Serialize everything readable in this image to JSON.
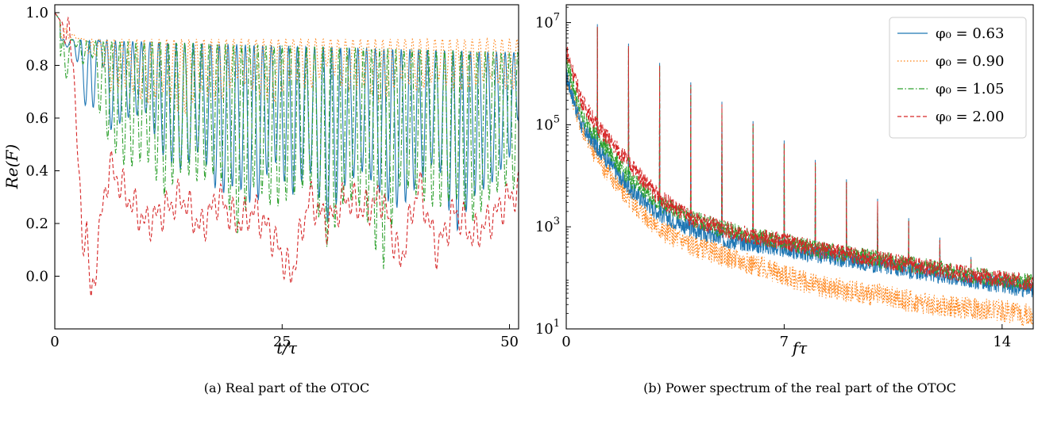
{
  "chart_data": [
    {
      "type": "line",
      "caption": "(a) Real part of the OTOC",
      "xlabel": "t/τ",
      "ylabel": "Re(F)",
      "xlim": [
        0,
        51
      ],
      "ylim": [
        -0.2,
        1.03
      ],
      "xticks": [
        0,
        25,
        50
      ],
      "yticks": [
        0.0,
        0.2,
        0.4,
        0.6,
        0.8,
        1.0
      ],
      "ytick_labels": [
        "0.0",
        "0.2",
        "0.4",
        "0.6",
        "0.8",
        "1.0"
      ],
      "grid": false,
      "series": [
        {
          "phi": "0.63",
          "color": "#1f77b4",
          "dash": "solid",
          "x": [
            0,
            1,
            2,
            3,
            4,
            5,
            6,
            8,
            10,
            12,
            14,
            16,
            18,
            20,
            22,
            24,
            26,
            28,
            30,
            32,
            34,
            36,
            38,
            40,
            42,
            44,
            46,
            48,
            50,
            51
          ],
          "y": [
            1.0,
            0.85,
            0.9,
            0.7,
            0.55,
            0.9,
            0.55,
            0.6,
            0.62,
            0.45,
            0.4,
            0.48,
            0.3,
            0.35,
            0.25,
            0.45,
            0.3,
            0.4,
            0.2,
            0.35,
            0.4,
            0.3,
            0.25,
            0.35,
            0.45,
            0.15,
            0.3,
            0.35,
            0.45,
            0.6
          ]
        },
        {
          "phi": "0.90",
          "color": "#ff7f0e",
          "dash": "dotted",
          "x": [
            0,
            1,
            2,
            3,
            4,
            5,
            6,
            8,
            10,
            12,
            14,
            16,
            18,
            20,
            22,
            24,
            26,
            28,
            30,
            32,
            34,
            36,
            38,
            40,
            42,
            44,
            46,
            48,
            50,
            51
          ],
          "y": [
            1.0,
            0.95,
            0.92,
            0.9,
            0.82,
            0.85,
            0.7,
            0.72,
            0.65,
            0.7,
            0.6,
            0.7,
            0.65,
            0.75,
            0.7,
            0.65,
            0.75,
            0.7,
            0.8,
            0.7,
            0.72,
            0.65,
            0.75,
            0.7,
            0.75,
            0.7,
            0.72,
            0.75,
            0.7,
            0.72
          ]
        },
        {
          "phi": "1.05",
          "color": "#2ca02c",
          "dash": "dashdot",
          "x": [
            0,
            1,
            2,
            3,
            4,
            5,
            6,
            8,
            10,
            12,
            14,
            16,
            18,
            20,
            22,
            24,
            26,
            28,
            30,
            32,
            34,
            36,
            38,
            40,
            42,
            44,
            46,
            48,
            50,
            51
          ],
          "y": [
            1.0,
            0.68,
            0.9,
            0.8,
            0.85,
            0.6,
            0.5,
            0.4,
            0.45,
            0.3,
            0.4,
            0.35,
            0.4,
            0.15,
            0.35,
            0.25,
            0.3,
            0.35,
            0.1,
            0.3,
            0.25,
            0.0,
            0.35,
            0.3,
            0.25,
            0.3,
            0.2,
            0.3,
            0.35,
            0.3
          ]
        },
        {
          "phi": "2.00",
          "color": "#d62728",
          "dash": "dashed",
          "x": [
            0,
            1,
            2,
            3,
            3.5,
            4,
            4.5,
            5,
            6,
            8,
            10,
            12,
            14,
            16,
            18,
            20,
            22,
            24,
            26,
            28,
            30,
            32,
            34,
            36,
            38,
            40,
            42,
            44,
            46,
            48,
            50,
            51
          ],
          "y": [
            1.0,
            0.95,
            0.85,
            0.12,
            0.2,
            -0.12,
            0.05,
            0.2,
            0.42,
            0.3,
            0.2,
            0.25,
            0.3,
            0.18,
            0.3,
            0.2,
            0.25,
            0.15,
            0.0,
            0.3,
            0.2,
            0.3,
            0.25,
            0.3,
            0.05,
            0.35,
            0.1,
            0.25,
            0.15,
            0.22,
            0.3,
            0.32
          ]
        }
      ]
    },
    {
      "type": "line",
      "caption": "(b) Power spectrum of the real part of the OTOC",
      "xlabel": "fτ",
      "ylabel": "",
      "xlim": [
        0,
        15
      ],
      "ylim_log10": [
        1,
        7.35
      ],
      "yscale": "log",
      "xticks": [
        0,
        7,
        14
      ],
      "ytick_exponents": [
        1,
        3,
        5,
        7
      ],
      "grid": false,
      "legend_position": "top-right",
      "peaks_at_integer_f": true,
      "series": [
        {
          "name": "φ₀ = 0.63",
          "color": "#1f77b4",
          "dash": "solid",
          "x": [
            0,
            0.5,
            1,
            2,
            3,
            4,
            5,
            6,
            7,
            8,
            9,
            10,
            11,
            12,
            13,
            14,
            15
          ],
          "log10y": [
            6.0,
            5.0,
            4.6,
            3.8,
            3.3,
            3.0,
            2.8,
            2.7,
            2.6,
            2.5,
            2.4,
            2.3,
            2.2,
            2.1,
            2.0,
            1.9,
            1.8
          ]
        },
        {
          "name": "φ₀ = 0.90",
          "color": "#ff7f0e",
          "dash": "dotted",
          "x": [
            0,
            0.5,
            1,
            2,
            3,
            4,
            5,
            6,
            7,
            8,
            9,
            10,
            11,
            12,
            13,
            14,
            15
          ],
          "log10y": [
            6.0,
            5.0,
            4.4,
            3.6,
            3.0,
            2.7,
            2.5,
            2.3,
            2.1,
            1.9,
            1.8,
            1.7,
            1.6,
            1.5,
            1.45,
            1.4,
            1.3
          ]
        },
        {
          "name": "φ₀ = 1.05",
          "color": "#2ca02c",
          "dash": "dashdot",
          "x": [
            0,
            0.5,
            1,
            2,
            3,
            4,
            5,
            6,
            7,
            8,
            9,
            10,
            11,
            12,
            13,
            14,
            15
          ],
          "log10y": [
            6.3,
            5.2,
            4.8,
            4.0,
            3.5,
            3.2,
            3.0,
            2.85,
            2.75,
            2.6,
            2.5,
            2.4,
            2.3,
            2.2,
            2.1,
            2.0,
            1.95
          ]
        },
        {
          "name": "φ₀ = 2.00",
          "color": "#d62728",
          "dash": "dashed",
          "x": [
            0,
            0.5,
            1,
            2,
            3,
            4,
            5,
            6,
            7,
            8,
            9,
            10,
            11,
            12,
            13,
            14,
            15
          ],
          "log10y": [
            6.5,
            5.5,
            5.0,
            4.3,
            3.6,
            3.2,
            3.0,
            2.85,
            2.75,
            2.6,
            2.5,
            2.4,
            2.3,
            2.2,
            2.1,
            2.0,
            1.95
          ]
        }
      ]
    }
  ]
}
